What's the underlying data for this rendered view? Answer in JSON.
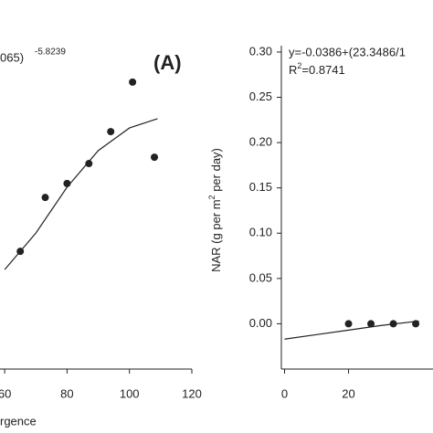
{
  "chart_data": [
    {
      "type": "scatter",
      "equation": "065)",
      "equation_exponent": "-5.8239",
      "panel_label": "(A)",
      "x_label": "rgence",
      "x": [
        65,
        73,
        80,
        87,
        94,
        101,
        108
      ],
      "values": [
        35.4,
        51.6,
        55.8,
        61.8,
        71.4,
        86.3,
        63.7
      ],
      "fit_x": [
        60,
        70,
        80,
        90,
        100,
        109
      ],
      "fit_values": [
        29.9,
        40.9,
        54.7,
        65.7,
        72.5,
        75.3
      ],
      "xlim": [
        58.5,
        120
      ],
      "xticks": [
        60,
        80,
        100,
        120
      ],
      "ylim": [
        0,
        100
      ],
      "color": "#222222"
    },
    {
      "type": "scatter",
      "equation": "y=-0.0386+(23.3486/1",
      "r2_prefix": "R",
      "r2_sup": "2",
      "r2_value": "=0.8741",
      "y_label": "NAR (g per m",
      "y_label_sup": "2",
      "y_label_end": " per day)",
      "x": [
        20,
        27,
        34,
        41
      ],
      "values": [
        0,
        0,
        0,
        0
      ],
      "fit_x": [
        0,
        10,
        20,
        30,
        42
      ],
      "fit_values": [
        -0.017,
        -0.012,
        -0.007,
        -0.002,
        0.003
      ],
      "xlim": [
        -1,
        46.4
      ],
      "xticks": [
        0,
        20
      ],
      "ylim": [
        -0.05,
        0.307
      ],
      "yticks": [
        {
          "value": 0,
          "label": "0.00"
        },
        {
          "value": 0.05,
          "label": "0.05"
        },
        {
          "value": 0.1,
          "label": "0.10"
        },
        {
          "value": 0.15,
          "label": "0.15"
        },
        {
          "value": 0.2,
          "label": "0.20"
        },
        {
          "value": 0.25,
          "label": "0.25"
        },
        {
          "value": 0.3,
          "label": "0.30"
        }
      ],
      "color": "#222222"
    }
  ]
}
